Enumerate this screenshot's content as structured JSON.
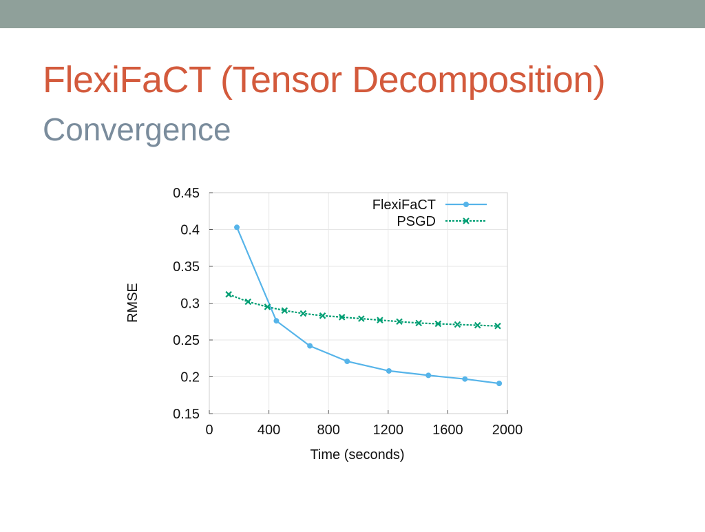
{
  "slide": {
    "title": "FlexiFaCT (Tensor Decomposition)",
    "subtitle": "Convergence"
  },
  "colors": {
    "top_bar": "#8fa09a",
    "title": "#d35a3c",
    "subtitle": "#7a8c9c",
    "flexifact": "#56b4e9",
    "psgd": "#009e73",
    "grid": "#e6e6e6"
  },
  "chart_data": {
    "type": "line",
    "title": "",
    "xlabel": "Time (seconds)",
    "ylabel": "RMSE",
    "xlim": [
      0,
      2000
    ],
    "ylim": [
      0.15,
      0.45
    ],
    "xticks": [
      0,
      400,
      800,
      1200,
      1600,
      2000
    ],
    "yticks": [
      0.15,
      0.2,
      0.25,
      0.3,
      0.35,
      0.4,
      0.45
    ],
    "xtick_labels": [
      "0",
      "400",
      "800",
      "1200",
      "1600",
      "2000"
    ],
    "ytick_labels": [
      "0.15",
      "0.2",
      "0.25",
      "0.3",
      "0.35",
      "0.4",
      "0.45"
    ],
    "grid": true,
    "legend_position": "top-right",
    "series": [
      {
        "name": "FlexiFaCT",
        "marker": "circle",
        "line": "solid",
        "color": "#56b4e9",
        "x": [
          185,
          450,
          675,
          925,
          1205,
          1470,
          1715,
          1945
        ],
        "y": [
          0.403,
          0.276,
          0.242,
          0.221,
          0.208,
          0.202,
          0.197,
          0.191
        ]
      },
      {
        "name": "PSGD",
        "marker": "x",
        "line": "dotted",
        "color": "#009e73",
        "x": [
          130,
          260,
          390,
          505,
          630,
          760,
          890,
          1020,
          1145,
          1275,
          1405,
          1535,
          1665,
          1800,
          1935
        ],
        "y": [
          0.312,
          0.302,
          0.295,
          0.29,
          0.286,
          0.283,
          0.281,
          0.279,
          0.277,
          0.275,
          0.273,
          0.272,
          0.271,
          0.27,
          0.269
        ]
      }
    ]
  }
}
